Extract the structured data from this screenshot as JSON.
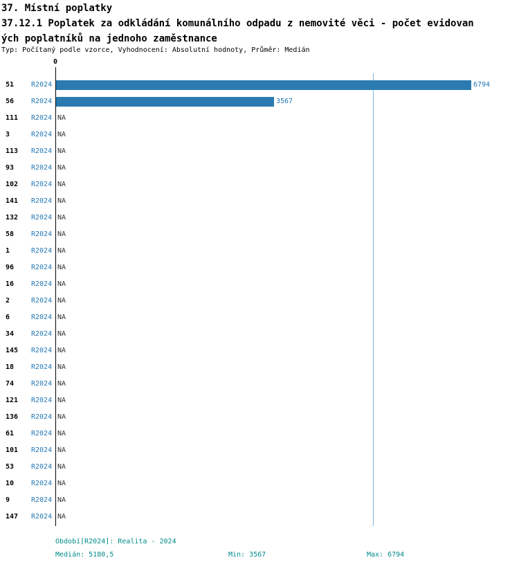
{
  "header": {
    "title": "37. Místní poplatky",
    "subtitle_line1": "37.12.1 Poplatek za odkládání komunálního odpadu z nemovité věci - počet evidovan",
    "subtitle_line2": "ých poplatníků na jednoho zaměstnance",
    "meta": "Typ: Počítaný podle vzorce, Vyhodnocení: Absolutní hodnoty, Průměr: Medián"
  },
  "colors": {
    "accent": "#2377b4",
    "bar": "#2b7bb0",
    "teal": "#008b8b",
    "medline": "#7fb2d6"
  },
  "chart_data": {
    "type": "bar",
    "orientation": "horizontal",
    "title": "37.12.1 Poplatek za odkládání komunálního odpadu z nemovité věci - počet evidovaných poplatníků na jednoho zaměstnance",
    "x_axis": {
      "zero_label": "0",
      "xlim": [
        0,
        6794
      ]
    },
    "series_label": "R2024",
    "median_value": 5180.5,
    "rows": [
      {
        "category": "51",
        "period": "R2024",
        "value": 6794,
        "label": "6794"
      },
      {
        "category": "56",
        "period": "R2024",
        "value": 3567,
        "label": "3567"
      },
      {
        "category": "111",
        "period": "R2024",
        "value": null,
        "label": "NA"
      },
      {
        "category": "3",
        "period": "R2024",
        "value": null,
        "label": "NA"
      },
      {
        "category": "113",
        "period": "R2024",
        "value": null,
        "label": "NA"
      },
      {
        "category": "93",
        "period": "R2024",
        "value": null,
        "label": "NA"
      },
      {
        "category": "102",
        "period": "R2024",
        "value": null,
        "label": "NA"
      },
      {
        "category": "141",
        "period": "R2024",
        "value": null,
        "label": "NA"
      },
      {
        "category": "132",
        "period": "R2024",
        "value": null,
        "label": "NA"
      },
      {
        "category": "58",
        "period": "R2024",
        "value": null,
        "label": "NA"
      },
      {
        "category": "1",
        "period": "R2024",
        "value": null,
        "label": "NA"
      },
      {
        "category": "96",
        "period": "R2024",
        "value": null,
        "label": "NA"
      },
      {
        "category": "16",
        "period": "R2024",
        "value": null,
        "label": "NA"
      },
      {
        "category": "2",
        "period": "R2024",
        "value": null,
        "label": "NA"
      },
      {
        "category": "6",
        "period": "R2024",
        "value": null,
        "label": "NA"
      },
      {
        "category": "34",
        "period": "R2024",
        "value": null,
        "label": "NA"
      },
      {
        "category": "145",
        "period": "R2024",
        "value": null,
        "label": "NA"
      },
      {
        "category": "18",
        "period": "R2024",
        "value": null,
        "label": "NA"
      },
      {
        "category": "74",
        "period": "R2024",
        "value": null,
        "label": "NA"
      },
      {
        "category": "121",
        "period": "R2024",
        "value": null,
        "label": "NA"
      },
      {
        "category": "136",
        "period": "R2024",
        "value": null,
        "label": "NA"
      },
      {
        "category": "61",
        "period": "R2024",
        "value": null,
        "label": "NA"
      },
      {
        "category": "101",
        "period": "R2024",
        "value": null,
        "label": "NA"
      },
      {
        "category": "53",
        "period": "R2024",
        "value": null,
        "label": "NA"
      },
      {
        "category": "10",
        "period": "R2024",
        "value": null,
        "label": "NA"
      },
      {
        "category": "9",
        "period": "R2024",
        "value": null,
        "label": "NA"
      },
      {
        "category": "147",
        "period": "R2024",
        "value": null,
        "label": "NA"
      }
    ]
  },
  "footer": {
    "period": "Období[R2024]: Realita - 2024",
    "median": "Medián: 5180,5",
    "min": "Min: 3567",
    "max": "Max: 6794"
  }
}
